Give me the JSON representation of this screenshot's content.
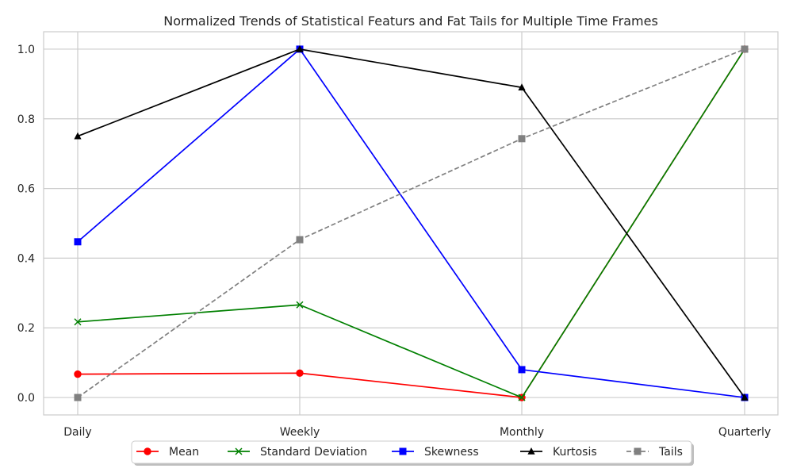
{
  "chart_data": {
    "type": "line",
    "title": "Normalized Trends of Statistical Featurs and Fat Tails for Multiple Time Frames",
    "xlabel": "",
    "ylabel": "",
    "categories": [
      "Daily",
      "Weekly",
      "Monthly",
      "Quarterly"
    ],
    "ylim": [
      -0.05,
      1.05
    ],
    "yticks": [
      "0.0",
      "0.2",
      "0.4",
      "0.6",
      "0.8",
      "1.0"
    ],
    "grid": true,
    "legend_position": "bottom-center",
    "series": [
      {
        "name": "Mean",
        "values": [
          0.067,
          0.07,
          0.0,
          1.0
        ],
        "color": "#ff0000",
        "marker": "circle",
        "dash": "solid"
      },
      {
        "name": "Standard Deviation",
        "values": [
          0.217,
          0.266,
          0.0,
          1.0
        ],
        "color": "#008000",
        "marker": "x",
        "dash": "solid"
      },
      {
        "name": "Skewness",
        "values": [
          0.447,
          1.0,
          0.08,
          0.0
        ],
        "color": "#0000ff",
        "marker": "square",
        "dash": "solid"
      },
      {
        "name": "Kurtosis",
        "values": [
          0.75,
          1.0,
          0.89,
          0.0
        ],
        "color": "#000000",
        "marker": "triangle",
        "dash": "solid"
      },
      {
        "name": "Tails",
        "values": [
          0.0,
          0.453,
          0.743,
          1.0
        ],
        "color": "#808080",
        "marker": "square",
        "dash": "dashed"
      }
    ]
  }
}
